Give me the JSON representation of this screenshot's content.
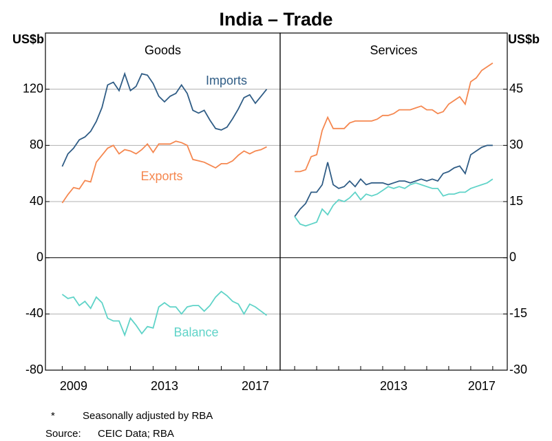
{
  "title": "India – Trade",
  "footnotes": [
    {
      "marker": "*",
      "text": "Seasonally adjusted by RBA"
    },
    {
      "marker": "Source:",
      "text": "CEIC Data; RBA"
    }
  ],
  "chart_data": [
    {
      "type": "line",
      "title": "Goods",
      "ylabel": "US$b",
      "y_axis_position": "left",
      "grid": true,
      "xlim": [
        2007.76,
        2018.09
      ],
      "xticks": [
        2009,
        2013,
        2017
      ],
      "ylim": [
        -80,
        160
      ],
      "yticks": [
        -80,
        -40,
        0,
        40,
        80,
        120
      ],
      "x": [
        2008.5,
        2008.75,
        2009,
        2009.25,
        2009.5,
        2009.75,
        2010,
        2010.25,
        2010.5,
        2010.75,
        2011,
        2011.25,
        2011.5,
        2011.75,
        2012,
        2012.25,
        2012.5,
        2012.75,
        2013,
        2013.25,
        2013.5,
        2013.75,
        2014,
        2014.25,
        2014.5,
        2014.75,
        2015,
        2015.25,
        2015.5,
        2015.75,
        2016,
        2016.25,
        2016.5,
        2016.75,
        2017,
        2017.25,
        2017.5
      ],
      "series": [
        {
          "name": "Imports",
          "color": "#2f5c85",
          "values": [
            65,
            74,
            78,
            84,
            86,
            90,
            97,
            107,
            123,
            125,
            119,
            131,
            119,
            122,
            131,
            130,
            124,
            115,
            111,
            115,
            117,
            123,
            117,
            105,
            103,
            105,
            98,
            92,
            91,
            93,
            99,
            106,
            114,
            116,
            110,
            115,
            120
          ]
        },
        {
          "name": "Exports",
          "color": "#f5874f",
          "values": [
            39,
            45,
            50,
            49,
            55,
            54,
            68,
            73,
            78,
            80,
            74,
            77,
            76,
            74,
            77,
            81,
            75,
            81,
            81,
            81,
            83,
            82,
            80,
            70,
            69,
            68,
            66,
            64,
            67,
            67,
            69,
            73,
            76,
            74,
            76,
            77,
            79
          ]
        },
        {
          "name": "Balance",
          "color": "#5fd3c8",
          "values": [
            -26,
            -29,
            -28,
            -34,
            -31,
            -36,
            -28,
            -32,
            -43,
            -45,
            -45,
            -55,
            -43,
            -48,
            -54,
            -49,
            -50,
            -35,
            -32,
            -35,
            -35,
            -40,
            -35,
            -34,
            -34,
            -38,
            -34,
            -28,
            -24,
            -27,
            -31,
            -33,
            -40,
            -33,
            -35,
            -38,
            -41
          ]
        }
      ]
    },
    {
      "type": "line",
      "title": "Services",
      "ylabel": "US$b",
      "y_axis_position": "right",
      "grid": true,
      "xlim": [
        2007.84,
        2018.16
      ],
      "xticks": [
        2013,
        2017
      ],
      "ylim": [
        -30,
        60
      ],
      "yticks": [
        -30,
        -15,
        0,
        15,
        30,
        45
      ],
      "x": [
        2008.5,
        2008.75,
        2009,
        2009.25,
        2009.5,
        2009.75,
        2010,
        2010.25,
        2010.5,
        2010.75,
        2011,
        2011.25,
        2011.5,
        2011.75,
        2012,
        2012.25,
        2012.5,
        2012.75,
        2013,
        2013.25,
        2013.5,
        2013.75,
        2014,
        2014.25,
        2014.5,
        2014.75,
        2015,
        2015.25,
        2015.5,
        2015.75,
        2016,
        2016.25,
        2016.5,
        2016.75,
        2017,
        2017.25,
        2017.5
      ],
      "series": [
        {
          "color": "#f5874f",
          "values": [
            23,
            23,
            23.5,
            27,
            27.5,
            34,
            37.5,
            34.5,
            34.5,
            34.5,
            36,
            36.5,
            36.5,
            36.5,
            36.5,
            37,
            38,
            38,
            38.5,
            39.5,
            39.5,
            39.5,
            40,
            40.5,
            39.5,
            39.5,
            38.5,
            39,
            41,
            42,
            43,
            41,
            47,
            48,
            50,
            51,
            52
          ]
        },
        {
          "color": "#2f5c85",
          "values": [
            11,
            13,
            14.5,
            17.5,
            17.5,
            19.5,
            25.5,
            19.5,
            18.5,
            19,
            20.5,
            19,
            21,
            19.5,
            20,
            20,
            20,
            19.5,
            20,
            20.5,
            20.5,
            20,
            20.5,
            21,
            20.5,
            21,
            20.5,
            22.5,
            23,
            24,
            24.5,
            22.5,
            27.5,
            28.5,
            29.5,
            30,
            30
          ]
        },
        {
          "color": "#5fd3c8",
          "values": [
            11,
            9,
            8.5,
            9,
            9.5,
            13,
            11.5,
            14,
            15.5,
            15,
            16,
            17.5,
            15.5,
            17,
            16.5,
            17,
            18,
            19,
            18.5,
            19,
            18.5,
            19.5,
            20,
            19.5,
            19,
            18.5,
            18.5,
            16.5,
            17,
            17,
            17.5,
            17.5,
            18.5,
            19,
            19.5,
            20,
            21
          ]
        }
      ]
    }
  ]
}
